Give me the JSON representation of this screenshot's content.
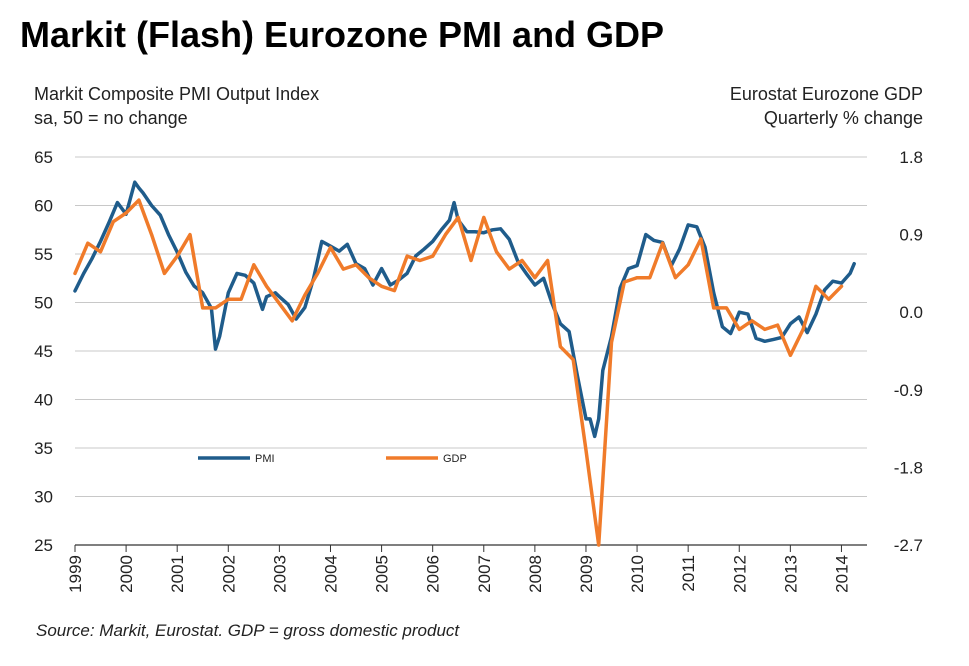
{
  "title": "Markit (Flash) Eurozone PMI and GDP",
  "left_axis_title": [
    "Markit Composite PMI Output Index",
    "sa, 50 = no change"
  ],
  "right_axis_title": [
    "Eurostat Eurozone GDP",
    "Quarterly % change"
  ],
  "source": "Source: Markit, Eurostat. GDP = gross domestic product",
  "chart_data": {
    "type": "line",
    "left_axis": {
      "min": 25,
      "max": 65,
      "ticks": [
        "65",
        "60",
        "55",
        "50",
        "45",
        "40",
        "35",
        "30",
        "25"
      ]
    },
    "right_axis": {
      "min": -2.7,
      "max": 1.8,
      "ticks": [
        "1.8",
        "0.9",
        "0.0",
        "-0.9",
        "-1.8",
        "-2.7"
      ]
    },
    "x_axis": {
      "min": 1999,
      "max": 2014.5,
      "ticks": [
        "1999",
        "2000",
        "2001",
        "2002",
        "2003",
        "2004",
        "2005",
        "2006",
        "2007",
        "2008",
        "2009",
        "2010",
        "2011",
        "2012",
        "2013",
        "2014"
      ]
    },
    "grid": "horizontal",
    "legend_placement": "inside-lower-left",
    "series": [
      {
        "name": "PMI",
        "axis": "left",
        "color": "#1f5c8b",
        "x": [
          1999.0,
          1999.17,
          1999.33,
          1999.5,
          1999.67,
          1999.83,
          2000.0,
          2000.17,
          2000.25,
          2000.33,
          2000.5,
          2000.67,
          2000.83,
          2001.0,
          2001.17,
          2001.33,
          2001.5,
          2001.67,
          2001.75,
          2001.83,
          2002.0,
          2002.17,
          2002.33,
          2002.5,
          2002.67,
          2002.75,
          2002.92,
          2003.0,
          2003.17,
          2003.33,
          2003.5,
          2003.67,
          2003.83,
          2004.0,
          2004.17,
          2004.33,
          2004.5,
          2004.67,
          2004.83,
          2005.0,
          2005.17,
          2005.33,
          2005.5,
          2005.67,
          2005.83,
          2006.0,
          2006.17,
          2006.33,
          2006.42,
          2006.5,
          2006.67,
          2006.83,
          2007.0,
          2007.17,
          2007.33,
          2007.5,
          2007.67,
          2007.83,
          2008.0,
          2008.17,
          2008.33,
          2008.5,
          2008.67,
          2008.83,
          2009.0,
          2009.08,
          2009.17,
          2009.25,
          2009.33,
          2009.5,
          2009.67,
          2009.83,
          2010.0,
          2010.17,
          2010.33,
          2010.5,
          2010.67,
          2010.83,
          2011.0,
          2011.17,
          2011.33,
          2011.5,
          2011.67,
          2011.83,
          2012.0,
          2012.17,
          2012.33,
          2012.5,
          2012.67,
          2012.83,
          2013.0,
          2013.17,
          2013.33,
          2013.5,
          2013.67,
          2013.83,
          2014.0,
          2014.17,
          2014.25
        ],
        "values": [
          51.2,
          53.0,
          54.5,
          56.3,
          58.3,
          60.3,
          59.1,
          62.4,
          61.8,
          61.3,
          60.0,
          59.0,
          57.0,
          55.2,
          53.1,
          51.7,
          51.0,
          49.4,
          45.2,
          46.5,
          51.0,
          53.0,
          52.8,
          52.0,
          49.3,
          50.6,
          51.0,
          50.6,
          49.8,
          48.3,
          49.5,
          52.5,
          56.3,
          55.8,
          55.3,
          56.0,
          54.0,
          53.5,
          51.8,
          53.5,
          51.8,
          52.3,
          53.0,
          54.8,
          55.5,
          56.3,
          57.5,
          58.5,
          60.3,
          58.5,
          57.3,
          57.3,
          57.2,
          57.5,
          57.6,
          56.5,
          54.2,
          53.0,
          51.8,
          52.5,
          50.0,
          47.8,
          47.0,
          42.5,
          38.0,
          38.0,
          36.2,
          38.0,
          43.0,
          46.5,
          51.5,
          53.5,
          53.8,
          57.0,
          56.4,
          56.2,
          53.8,
          55.5,
          58.0,
          57.8,
          55.7,
          51.0,
          47.5,
          46.8,
          49.0,
          48.8,
          46.3,
          46.0,
          46.2,
          46.4,
          47.8,
          48.5,
          46.9,
          48.8,
          51.3,
          52.2,
          52.0,
          53.0,
          54.0
        ]
      },
      {
        "name": "GDP",
        "axis": "right",
        "color": "#f07b2a",
        "x": [
          1999.0,
          1999.25,
          1999.5,
          1999.75,
          2000.0,
          2000.25,
          2000.5,
          2000.75,
          2001.0,
          2001.25,
          2001.5,
          2001.75,
          2002.0,
          2002.25,
          2002.5,
          2002.75,
          2003.0,
          2003.25,
          2003.5,
          2003.75,
          2004.0,
          2004.25,
          2004.5,
          2004.75,
          2005.0,
          2005.25,
          2005.5,
          2005.75,
          2006.0,
          2006.25,
          2006.5,
          2006.75,
          2007.0,
          2007.25,
          2007.5,
          2007.75,
          2008.0,
          2008.25,
          2008.5,
          2008.75,
          2009.0,
          2009.25,
          2009.5,
          2009.75,
          2010.0,
          2010.25,
          2010.5,
          2010.75,
          2011.0,
          2011.25,
          2011.5,
          2011.75,
          2012.0,
          2012.25,
          2012.5,
          2012.75,
          2013.0,
          2013.25,
          2013.5,
          2013.75,
          2014.0
        ],
        "values": [
          0.45,
          0.8,
          0.7,
          1.05,
          1.15,
          1.3,
          0.9,
          0.45,
          0.65,
          0.9,
          0.05,
          0.05,
          0.15,
          0.15,
          0.55,
          0.3,
          0.1,
          -0.1,
          0.2,
          0.45,
          0.75,
          0.5,
          0.55,
          0.4,
          0.3,
          0.25,
          0.65,
          0.6,
          0.65,
          0.9,
          1.1,
          0.6,
          1.1,
          0.7,
          0.5,
          0.6,
          0.4,
          0.6,
          -0.4,
          -0.55,
          -1.6,
          -2.7,
          -0.35,
          0.35,
          0.4,
          0.4,
          0.8,
          0.4,
          0.55,
          0.85,
          0.05,
          0.05,
          -0.2,
          -0.1,
          -0.2,
          -0.15,
          -0.5,
          -0.2,
          0.3,
          0.15,
          0.3
        ]
      }
    ]
  }
}
